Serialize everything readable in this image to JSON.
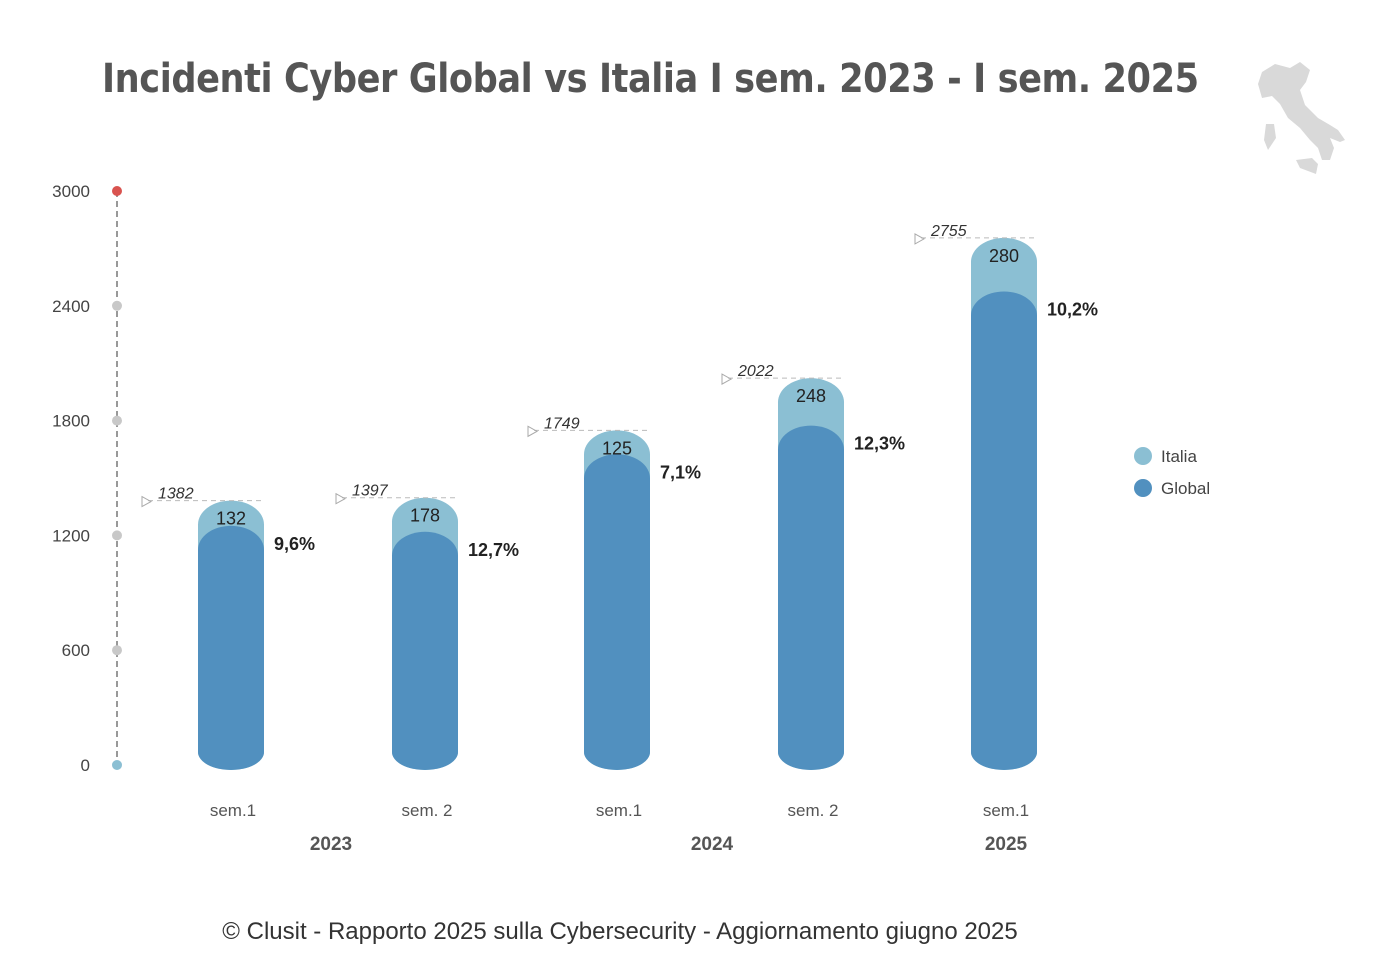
{
  "title": "Incidenti Cyber Global vs Italia I sem. 2023 - I sem. 2025",
  "footer": "© Clusit - Rapporto 2025 sulla Cybersecurity - Aggiornamento giugno 2025",
  "colors": {
    "italia": "#8bbfd3",
    "global": "#5190bf",
    "axis": "#999999",
    "top_dot": "#d9534f",
    "bottom_dot": "#8bbfd3",
    "map": "#d9d9d9"
  },
  "decoration": {
    "map_icon": "italy-map-silhouette"
  },
  "chart_data": {
    "type": "bar",
    "stacked": true,
    "categories": [
      "sem.1",
      "sem. 2",
      "sem.1",
      "sem. 2",
      "sem.1"
    ],
    "groups": [
      {
        "label": "2023",
        "span": [
          0,
          1
        ]
      },
      {
        "label": "2024",
        "span": [
          2,
          3
        ]
      },
      {
        "label": "2025",
        "span": [
          4,
          4
        ]
      }
    ],
    "series": [
      {
        "name": "Global",
        "values": [
          1250,
          1219,
          1624,
          1774,
          2475
        ]
      },
      {
        "name": "Italia",
        "values": [
          132,
          178,
          125,
          248,
          280
        ]
      }
    ],
    "totals": [
      "1382",
      "1397",
      "1749",
      "2022",
      "2755"
    ],
    "italia_labels": [
      "132",
      "178",
      "125",
      "248",
      "280"
    ],
    "percent_labels": [
      "9,6%",
      "12,7%",
      "7,1%",
      "12,3%",
      "10,2%"
    ],
    "yticks": [
      "0",
      "600",
      "1200",
      "1800",
      "2400",
      "3000"
    ],
    "ylim": [
      0,
      3000
    ],
    "legend": [
      "Italia",
      "Global"
    ],
    "legend_position": "right",
    "grid": false
  }
}
